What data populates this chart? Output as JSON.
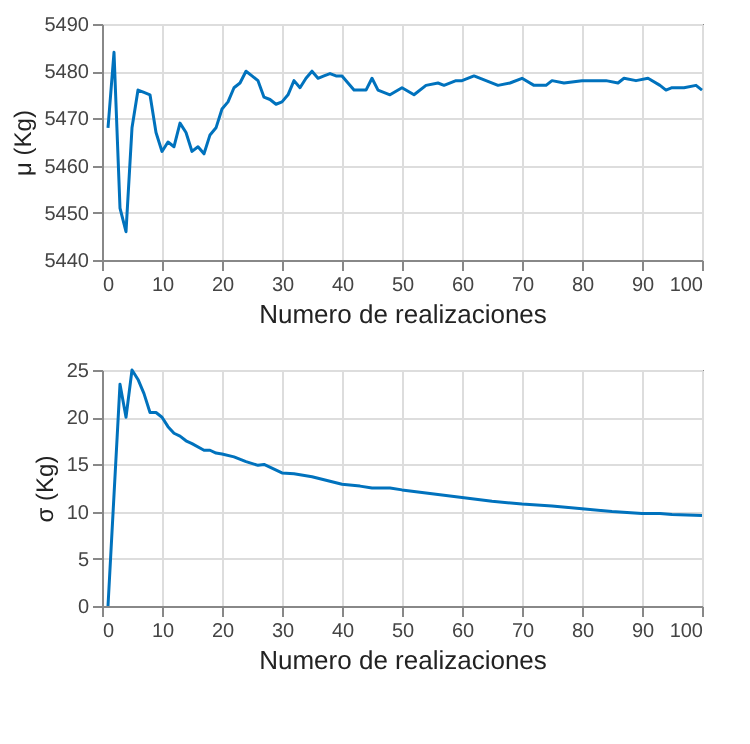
{
  "chart_data": [
    {
      "type": "line",
      "xlabel": "Numero de realizaciones",
      "ylabel": "μ (Kg)",
      "xlim": [
        0,
        100
      ],
      "xticks": [
        0,
        10,
        20,
        30,
        40,
        50,
        60,
        70,
        80,
        90,
        100
      ],
      "ylim": [
        5440,
        5490
      ],
      "yticks": [
        5440,
        5450,
        5460,
        5470,
        5480,
        5490
      ],
      "grid": true,
      "marker": "none",
      "line_style": "solid",
      "series": [
        {
          "color": "#0072bd",
          "x": [
            1,
            2,
            3,
            4,
            5,
            6,
            7,
            8,
            9,
            10,
            11,
            12,
            13,
            14,
            15,
            16,
            17,
            18,
            19,
            20,
            21,
            22,
            23,
            24,
            25,
            26,
            27,
            28,
            29,
            30,
            31,
            32,
            33,
            34,
            35,
            36,
            37,
            38,
            39,
            40,
            42,
            44,
            45,
            46,
            48,
            50,
            52,
            54,
            56,
            57,
            59,
            60,
            62,
            64,
            66,
            68,
            70,
            72,
            74,
            75,
            77,
            80,
            82,
            84,
            86,
            87,
            89,
            91,
            93,
            94,
            95,
            97,
            99,
            100
          ],
          "values": [
            5468,
            5484,
            5451,
            5446,
            5468,
            5476,
            5475.5,
            5475,
            5467,
            5463,
            5465,
            5464,
            5469,
            5467,
            5463,
            5464,
            5462.5,
            5466.5,
            5468,
            5472,
            5473.5,
            5476.5,
            5477.5,
            5480,
            5479,
            5478,
            5474.5,
            5474,
            5473,
            5473.5,
            5475,
            5478,
            5476.5,
            5478.5,
            5480,
            5478.5,
            5479,
            5479.5,
            5479,
            5479,
            5476,
            5476,
            5478.5,
            5476,
            5475,
            5476.5,
            5475,
            5477,
            5477.5,
            5477,
            5478,
            5478,
            5479,
            5478,
            5477,
            5477.5,
            5478.5,
            5477,
            5477,
            5478,
            5477.5,
            5478,
            5478,
            5478,
            5477.5,
            5478.5,
            5478,
            5478.5,
            5477,
            5476,
            5476.5,
            5476.5,
            5477,
            5476
          ]
        }
      ]
    },
    {
      "type": "line",
      "xlabel": "Numero de realizaciones",
      "ylabel": "σ (Kg)",
      "xlim": [
        0,
        100
      ],
      "xticks": [
        0,
        10,
        20,
        30,
        40,
        50,
        60,
        70,
        80,
        90,
        100
      ],
      "ylim": [
        0,
        25
      ],
      "yticks": [
        0,
        5,
        10,
        15,
        20,
        25
      ],
      "grid": true,
      "marker": "none",
      "line_style": "solid",
      "series": [
        {
          "color": "#0072bd",
          "x": [
            1,
            3,
            4,
            5,
            6,
            7,
            8,
            9,
            10,
            11,
            12,
            13,
            14,
            15,
            17,
            18,
            19,
            20,
            22,
            24,
            26,
            27,
            30,
            32,
            35,
            40,
            43,
            45,
            48,
            50,
            55,
            60,
            65,
            70,
            75,
            80,
            85,
            90,
            93,
            95,
            100
          ],
          "values": [
            0,
            23.5,
            20,
            25,
            24,
            22.5,
            20.5,
            20.5,
            20,
            19,
            18.3,
            18,
            17.5,
            17.2,
            16.5,
            16.5,
            16.2,
            16.1,
            15.8,
            15.3,
            14.9,
            15,
            14.1,
            14,
            13.7,
            12.9,
            12.7,
            12.5,
            12.5,
            12.3,
            11.9,
            11.5,
            11.1,
            10.8,
            10.6,
            10.3,
            10,
            9.8,
            9.8,
            9.7,
            9.6
          ]
        }
      ]
    }
  ]
}
